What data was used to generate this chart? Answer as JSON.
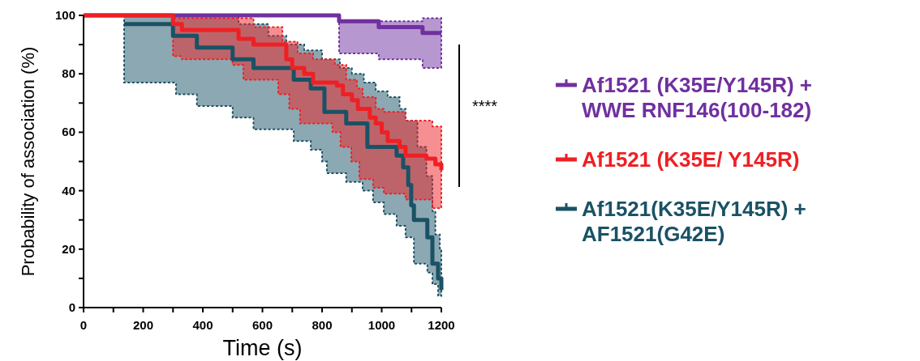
{
  "chart_data": {
    "type": "step",
    "xlabel": "Time (s)",
    "ylabel": "Probability of association (%)",
    "xlim": [
      0,
      1200
    ],
    "ylim": [
      0,
      100
    ],
    "xticks": [
      0,
      {
        "value": 100,
        "label": null
      },
      200,
      {
        "value": 300,
        "label": null
      },
      400,
      {
        "value": 500,
        "label": null
      },
      600,
      {
        "value": 700,
        "label": null
      },
      800,
      {
        "value": 900,
        "label": null
      },
      1000,
      {
        "value": 1100,
        "label": null
      },
      1200
    ],
    "yticks": [
      0,
      {
        "value": 10,
        "label": null
      },
      20,
      {
        "value": 30,
        "label": null
      },
      40,
      {
        "value": 50,
        "label": null
      },
      60,
      {
        "value": 70,
        "label": null
      },
      80,
      {
        "value": 90,
        "label": null
      },
      100
    ],
    "grid": false,
    "legend": "right",
    "marker": "none",
    "line_style": "solid",
    "annotations": [
      "****"
    ],
    "series": [
      {
        "name": "Af1521 (K35E/Y145R) + WWE RNF146(100-182)",
        "color": "#7030a0",
        "x": [
          0,
          857,
          990,
          1137,
          1200
        ],
        "values": [
          100,
          98,
          96,
          94,
          94
        ],
        "lower": [
          100,
          87,
          85,
          82,
          82
        ],
        "upper": [
          100,
          98,
          98,
          99,
          99
        ]
      },
      {
        "name": "Af1521 (K35E/ Y145R)",
        "color": "#ee2024",
        "x": [
          0,
          300,
          330,
          500,
          520,
          536,
          570,
          653,
          667,
          680,
          690,
          700,
          718,
          726,
          740,
          770,
          835,
          843,
          850,
          862,
          870,
          881,
          898,
          900,
          917,
          920,
          925,
          936,
          960,
          971,
          980,
          1000,
          1007,
          1020,
          1060,
          1080,
          1150,
          1170,
          1180,
          1200
        ],
        "values": [
          100,
          97,
          95,
          95,
          92,
          92,
          90,
          90,
          90,
          85,
          85,
          82,
          82,
          82,
          80,
          77,
          77,
          77,
          76,
          76,
          73,
          73,
          73,
          71,
          71,
          68,
          68,
          68,
          65,
          65,
          63,
          60,
          60,
          57,
          55,
          52,
          51,
          51,
          49,
          47
        ],
        "lower": [
          100,
          86,
          85,
          83,
          83,
          78,
          78,
          73,
          73,
          73,
          68,
          68,
          68,
          63,
          63,
          63,
          60,
          60,
          60,
          55,
          55,
          55,
          50,
          50,
          50,
          50,
          44,
          44,
          44,
          41,
          41,
          41,
          39,
          39,
          39,
          37,
          37,
          34,
          34,
          34
        ],
        "upper": [
          100,
          99,
          99,
          99,
          99,
          99,
          96,
          96,
          91,
          91,
          91,
          91,
          87,
          87,
          87,
          85,
          85,
          83,
          83,
          83,
          83,
          78,
          78,
          78,
          75,
          75,
          75,
          72,
          72,
          72,
          68,
          68,
          67,
          67,
          67,
          64,
          64,
          62,
          62,
          62
        ]
      },
      {
        "name": "Af1521(K35E/Y145R) + AF1521(G42E)",
        "color": "#1a5265",
        "x": [
          0,
          136,
          300,
          310,
          380,
          450,
          500,
          520,
          570,
          620,
          680,
          705,
          740,
          762,
          800,
          808,
          816,
          860,
          881,
          900,
          936,
          940,
          952,
          971,
          980,
          1007,
          1020,
          1050,
          1060,
          1072,
          1080,
          1089,
          1099,
          1108,
          1120,
          1150,
          1153,
          1170,
          1180,
          1189,
          1195,
          1200
        ],
        "values": [
          null,
          97,
          93,
          93,
          89,
          89,
          85,
          85,
          82,
          82,
          82,
          78,
          78,
          75,
          75,
          67,
          67,
          67,
          63,
          63,
          63,
          63,
          55,
          55,
          55,
          55,
          55,
          52,
          52,
          48,
          48,
          42,
          35,
          30,
          30,
          30,
          24,
          15,
          15,
          10,
          10,
          6
        ],
        "lower": [
          100,
          77,
          77,
          73,
          69,
          69,
          65,
          65,
          61,
          61,
          61,
          57,
          57,
          54,
          50,
          50,
          46,
          46,
          43,
          43,
          40,
          40,
          40,
          36,
          36,
          32,
          32,
          28,
          28,
          28,
          24,
          24,
          24,
          15,
          15,
          15,
          12,
          8,
          8,
          4,
          4,
          4
        ],
        "upper": [
          100,
          100,
          100,
          100,
          100,
          100,
          100,
          97,
          97,
          93,
          90,
          90,
          88,
          88,
          85,
          85,
          85,
          82,
          82,
          80,
          80,
          77,
          77,
          77,
          74,
          74,
          72,
          72,
          68,
          68,
          64,
          64,
          64,
          64,
          55,
          45,
          45,
          33,
          25,
          25,
          20,
          20
        ]
      }
    ]
  }
}
